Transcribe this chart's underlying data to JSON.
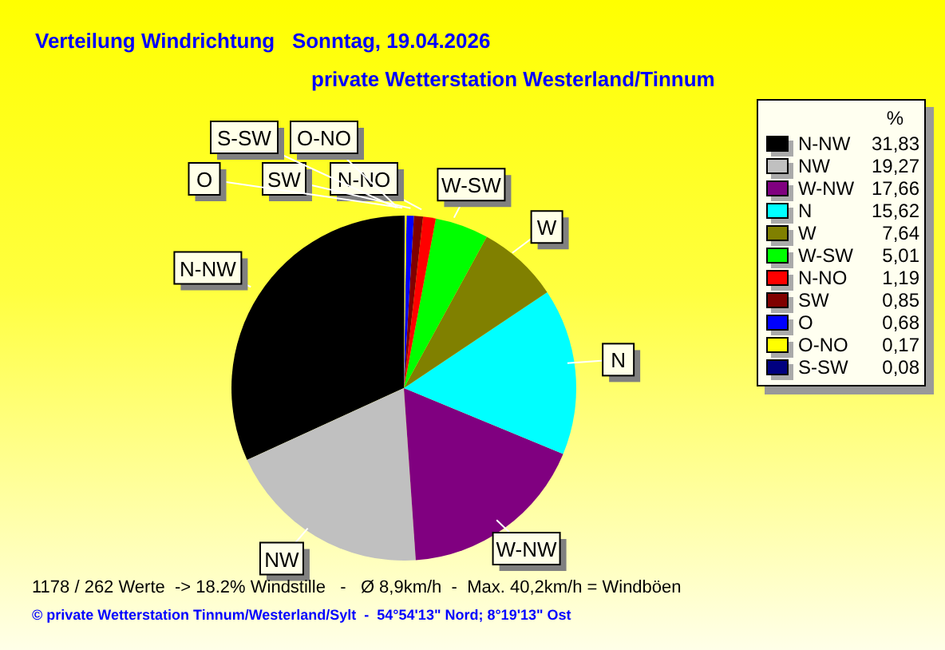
{
  "chart_data": {
    "type": "pie",
    "title": "Verteilung Windrichtung   Sonntag, 19.04.2026",
    "subtitle": "private Wetterstation Westerland/Tinnum",
    "legend_title": "%",
    "categories": [
      "N-NW",
      "NW",
      "W-NW",
      "N",
      "W",
      "W-SW",
      "N-NO",
      "SW",
      "O",
      "O-NO",
      "S-SW"
    ],
    "values": [
      31.83,
      19.27,
      17.66,
      15.62,
      7.64,
      5.01,
      1.19,
      0.85,
      0.68,
      0.17,
      0.08
    ],
    "colors": [
      "#000000",
      "#c0c0c0",
      "#800080",
      "#00ffff",
      "#808000",
      "#00ff00",
      "#ff0000",
      "#800000",
      "#0000ff",
      "#ffff00",
      "#000080"
    ],
    "value_labels": [
      "31,83",
      "19,27",
      "17,66",
      "15,62",
      "7,64",
      "5,01",
      "1,19",
      "0,85",
      "0,68",
      "0,17",
      "0,08"
    ],
    "legend": "right",
    "annotations": [
      "1178 / 262 Werte  -> 18.2% Windstille   -   Ø 8,9km/h  -  Max. 40,2km/h = Windböen",
      "© private Wetterstation Tinnum/Westerland/Sylt  -  54°54'13\" Nord; 8°19'13\" Ost"
    ]
  }
}
